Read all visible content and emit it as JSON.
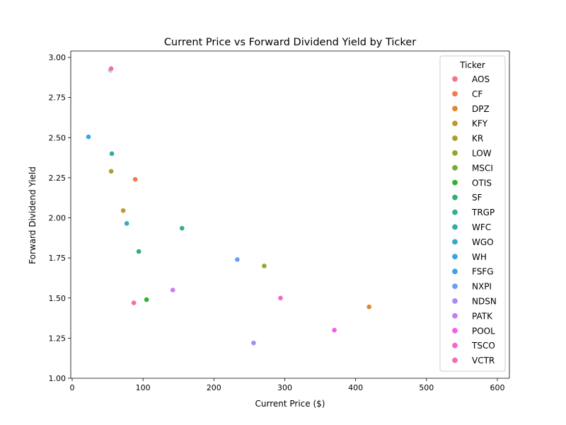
{
  "chart_data": {
    "type": "scatter",
    "title": "Current Price vs Forward Dividend Yield by Ticker",
    "xlabel": "Current Price ($)",
    "ylabel": "Forward Dividend Yield",
    "xlim": [
      -2,
      617
    ],
    "ylim": [
      1.0,
      3.04
    ],
    "xticks": [
      0,
      100,
      200,
      300,
      400,
      500,
      600
    ],
    "yticks": [
      1.0,
      1.25,
      1.5,
      1.75,
      2.0,
      2.25,
      2.5,
      2.75,
      3.0
    ],
    "xtick_labels": [
      "0",
      "100",
      "200",
      "300",
      "400",
      "500",
      "600"
    ],
    "ytick_labels": [
      "1.00",
      "1.25",
      "1.50",
      "1.75",
      "2.00",
      "2.25",
      "2.50",
      "2.75",
      "3.00"
    ],
    "grid": false,
    "legend": {
      "title": "Ticker",
      "placement": "right"
    },
    "series": [
      {
        "name": "AOS",
        "color": "#f77189",
        "points": [
          [
            87,
            1.47
          ]
        ]
      },
      {
        "name": "CF",
        "color": "#f3794b",
        "points": [
          [
            89,
            2.24
          ]
        ]
      },
      {
        "name": "DPZ",
        "color": "#dc8932",
        "points": [
          [
            419,
            1.445
          ]
        ]
      },
      {
        "name": "KFY",
        "color": "#c39532",
        "points": [
          [
            72,
            2.045
          ]
        ]
      },
      {
        "name": "KR",
        "color": "#ae9d31",
        "points": [
          [
            55,
            2.29
          ]
        ]
      },
      {
        "name": "LOW",
        "color": "#97a431",
        "points": [
          [
            271,
            1.7
          ]
        ]
      },
      {
        "name": "MSCI",
        "color": "#77ab31",
        "points": [
          [
            54,
            2.92
          ]
        ]
      },
      {
        "name": "OTIS",
        "color": "#33b032",
        "points": [
          [
            105,
            1.49
          ]
        ]
      },
      {
        "name": "SF",
        "color": "#34ae74",
        "points": [
          [
            94,
            1.79
          ]
        ]
      },
      {
        "name": "TRGP",
        "color": "#36ad93",
        "points": [
          [
            155,
            1.935
          ]
        ]
      },
      {
        "name": "WFC",
        "color": "#37abaa",
        "points": [
          [
            56,
            2.4
          ]
        ]
      },
      {
        "name": "WGO",
        "color": "#38a9c5",
        "points": [
          [
            77,
            1.965
          ]
        ]
      },
      {
        "name": "WH",
        "color": "#3aa5df",
        "points": [
          [
            54,
            2.925
          ]
        ]
      },
      {
        "name": "FSFG",
        "color": "#3ba3ec",
        "points": [
          [
            23,
            2.505
          ]
        ]
      },
      {
        "name": "NXPI",
        "color": "#6e9bf4",
        "points": [
          [
            233,
            1.74
          ]
        ]
      },
      {
        "name": "NDSN",
        "color": "#a48cf4",
        "points": [
          [
            256,
            1.22
          ]
        ]
      },
      {
        "name": "PATK",
        "color": "#cc7af4",
        "points": [
          [
            142,
            1.55
          ]
        ]
      },
      {
        "name": "POOL",
        "color": "#f45deb",
        "points": [
          [
            370,
            1.3
          ]
        ]
      },
      {
        "name": "TSCO",
        "color": "#f565cc",
        "points": [
          [
            294,
            1.5
          ]
        ]
      },
      {
        "name": "VCTR",
        "color": "#f66bad",
        "points": [
          [
            55,
            2.93
          ]
        ]
      }
    ]
  }
}
